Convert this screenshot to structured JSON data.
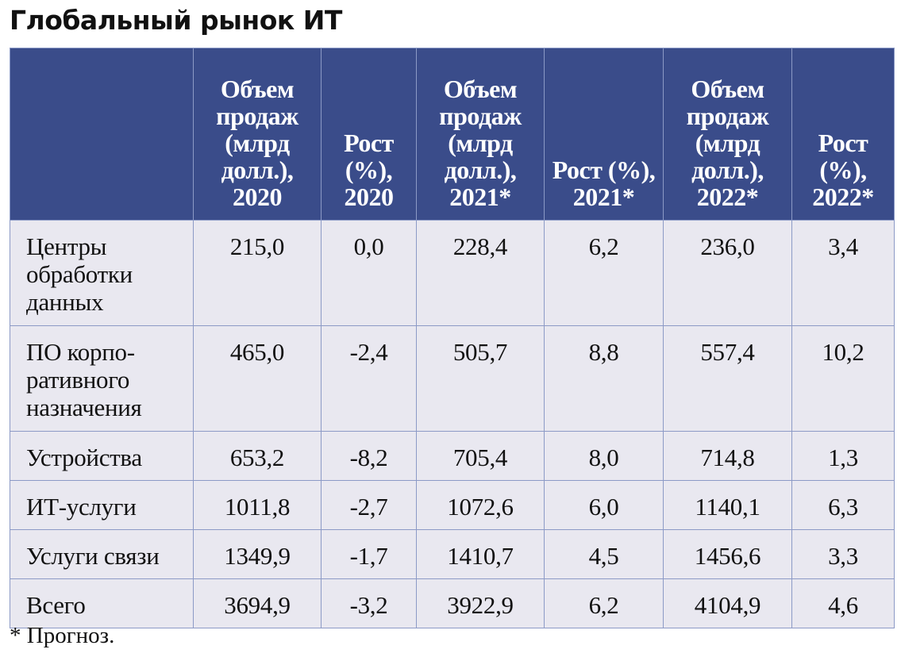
{
  "title": "Глобальный рынок ИТ",
  "headers": [
    "",
    "Объем продаж (млрд долл.), 2020",
    "Рост (%), 2020",
    "Объем продаж (млрд долл.), 2021*",
    "Рост (%), 2021*",
    "Объем продаж (млрд долл.), 2022*",
    "Рост (%), 2022*"
  ],
  "rows": [
    [
      "Центры обработки данных",
      "215,0",
      "0,0",
      "228,4",
      "6,2",
      "236,0",
      "3,4"
    ],
    [
      "ПО корпо-ративного назначения",
      "465,0",
      "-2,4",
      "505,7",
      "8,8",
      "557,4",
      "10,2"
    ],
    [
      "Устройства",
      "653,2",
      "-8,2",
      "705,4",
      "8,0",
      "714,8",
      "1,3"
    ],
    [
      "ИТ-услуги",
      "1011,8",
      "-2,7",
      "1072,6",
      "6,0",
      "1140,1",
      "6,3"
    ],
    [
      "Услуги связи",
      "1349,9",
      "-1,7",
      "1410,7",
      "4,5",
      "1456,6",
      "3,3"
    ],
    [
      "Всего",
      "3694,9",
      "-3,2",
      "3922,9",
      "6,2",
      "4104,9",
      "4,6"
    ]
  ],
  "footnote": "* Прогноз.",
  "colors": {
    "header_bg": "#3a4c8a",
    "body_bg": "#e9e8f0",
    "border": "#8c9ac6"
  }
}
